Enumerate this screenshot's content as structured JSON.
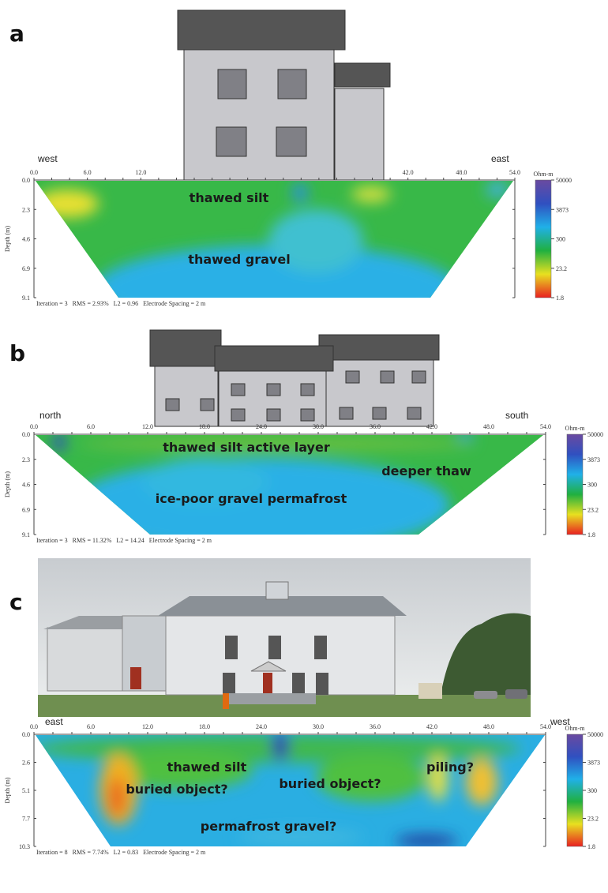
{
  "panels": [
    {
      "label": "a",
      "side_labels": [
        "west",
        "east"
      ],
      "x_ticks": [
        "0.0",
        "6.0",
        "12.0",
        "42.0",
        "48.0",
        "54.0"
      ],
      "depth_label": "Depth (m)",
      "depth_ticks": [
        "0.0",
        "2.3",
        "4.6",
        "6.9",
        "9.1"
      ],
      "colorbar": {
        "unit": "Ohm-m",
        "ticks": [
          "50000",
          "3873",
          "300",
          "23.2",
          "1.8"
        ]
      },
      "footer": "Iteration = 3   RMS = 2.93%   L2 = 0.96   Electrode Spacing = 2 m",
      "annotations": [
        "thawed silt",
        "thawed gravel"
      ]
    },
    {
      "label": "b",
      "side_labels": [
        "north",
        "south"
      ],
      "x_ticks": [
        "0.0",
        "6.0",
        "12.0",
        "18.0",
        "24.0",
        "30.0",
        "36.0",
        "42.0",
        "48.0",
        "54.0"
      ],
      "depth_label": "Depth (m)",
      "depth_ticks": [
        "0.0",
        "2.3",
        "4.6",
        "6.9",
        "9.1"
      ],
      "colorbar": {
        "unit": "Ohm-m",
        "ticks": [
          "50000",
          "3873",
          "300",
          "23.2",
          "1.8"
        ]
      },
      "footer": "Iteration = 3   RMS = 11.32%   L2 = 14.24   Electrode Spacing = 2 m",
      "annotations": [
        "thawed silt active layer",
        "deeper thaw",
        "ice-poor gravel permafrost"
      ]
    },
    {
      "label": "c",
      "side_labels": [
        "east",
        "west"
      ],
      "x_ticks": [
        "0.0",
        "6.0",
        "12.0",
        "18.0",
        "24.0",
        "30.0",
        "36.0",
        "42.0",
        "48.0",
        "54.0"
      ],
      "depth_label": "Depth (m)",
      "depth_ticks": [
        "0.0",
        "2.6",
        "5.1",
        "7.7",
        "10.3"
      ],
      "colorbar": {
        "unit": "Ohm-m",
        "ticks": [
          "50000",
          "3873",
          "300",
          "23.2",
          "1.8"
        ]
      },
      "footer": "Iteration = 8   RMS = 7.74%   L2 = 0.83   Electrode Spacing = 2 m",
      "annotations": [
        "thawed silt",
        "buried object?",
        "buried object?",
        "piling?",
        "permafrost gravel?"
      ]
    }
  ]
}
